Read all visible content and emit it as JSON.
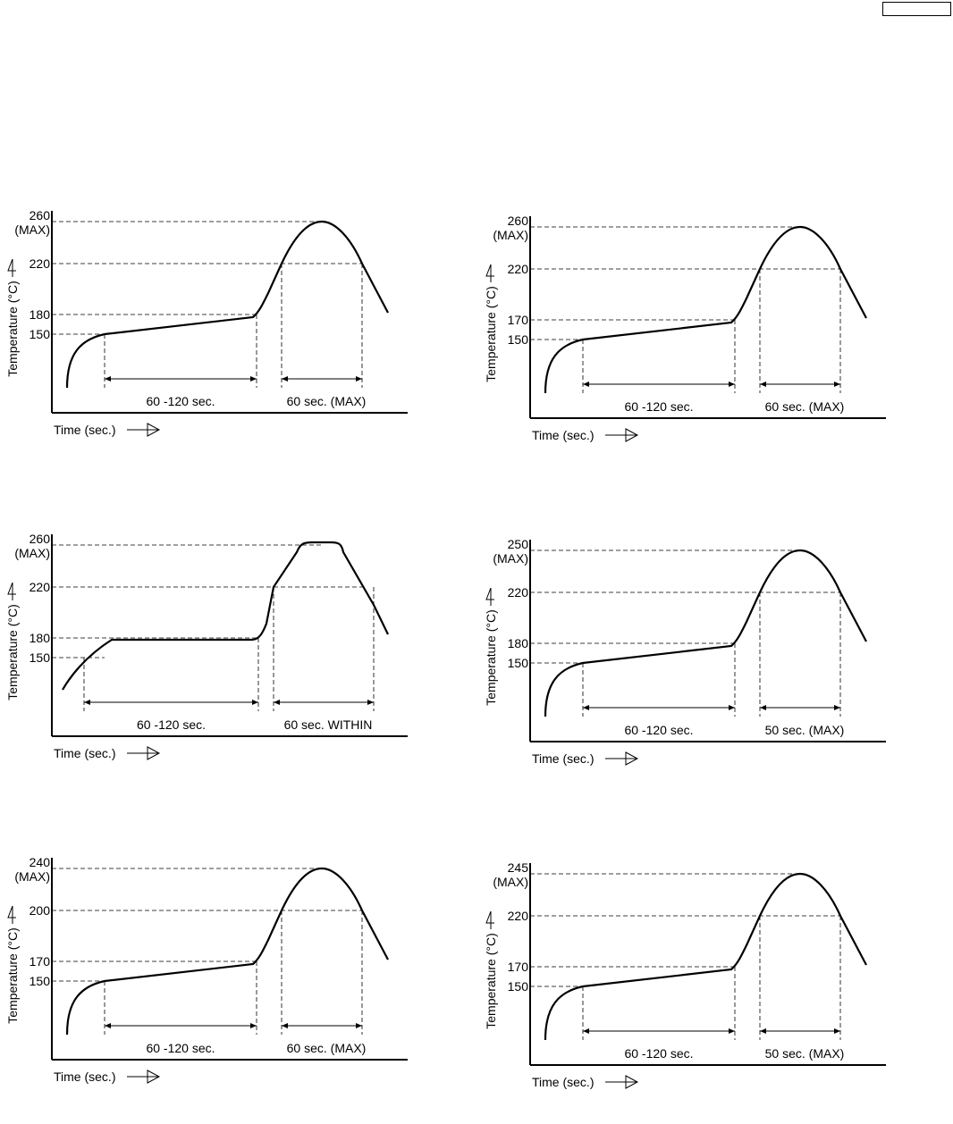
{
  "page": {
    "box_label": ""
  },
  "chart_data": [
    {
      "type": "line",
      "peak_label": "260",
      "peak_sub_label": "(MAX)",
      "y_ticks": [
        "260",
        "220",
        "180",
        "150"
      ],
      "ylabel": "Temperature (°C)",
      "xlabel": "Time (sec.)",
      "preheat_label": "60 -120 sec.",
      "reflow_label": "60 sec. (MAX)",
      "preheat_range_c": [
        150,
        180
      ],
      "reflow_threshold_c": 220,
      "peak_c": 260,
      "profile_shape": "peak"
    },
    {
      "type": "line",
      "peak_label": "260",
      "peak_sub_label": "(MAX)",
      "y_ticks": [
        "260",
        "220",
        "170",
        "150"
      ],
      "ylabel": "Temperature (°C)",
      "xlabel": "Time (sec.)",
      "preheat_label": "60 -120 sec.",
      "reflow_label": "60 sec. (MAX)",
      "preheat_range_c": [
        150,
        170
      ],
      "reflow_threshold_c": 220,
      "peak_c": 260,
      "profile_shape": "peak"
    },
    {
      "type": "line",
      "peak_label": "260",
      "peak_sub_label": "(MAX)",
      "y_ticks": [
        "260",
        "220",
        "180",
        "150"
      ],
      "ylabel": "Temperature (°C)",
      "xlabel": "Time (sec.)",
      "preheat_label": "60 -120 sec.",
      "reflow_label": "60 sec. WITHIN",
      "preheat_range_c": [
        150,
        180
      ],
      "reflow_threshold_c": 220,
      "peak_c": 260,
      "profile_shape": "plateau"
    },
    {
      "type": "line",
      "peak_label": "250",
      "peak_sub_label": "(MAX)",
      "y_ticks": [
        "250",
        "220",
        "180",
        "150"
      ],
      "ylabel": "Temperature (°C)",
      "xlabel": "Time (sec.)",
      "preheat_label": "60 -120 sec.",
      "reflow_label": "50 sec. (MAX)",
      "preheat_range_c": [
        150,
        180
      ],
      "reflow_threshold_c": 220,
      "peak_c": 250,
      "profile_shape": "peak"
    },
    {
      "type": "line",
      "peak_label": "240",
      "peak_sub_label": "(MAX)",
      "y_ticks": [
        "240",
        "200",
        "170",
        "150"
      ],
      "ylabel": "Temperature (°C)",
      "xlabel": "Time (sec.)",
      "preheat_label": "60 -120 sec.",
      "reflow_label": "60 sec. (MAX)",
      "preheat_range_c": [
        150,
        170
      ],
      "reflow_threshold_c": 200,
      "peak_c": 240,
      "profile_shape": "peak"
    },
    {
      "type": "line",
      "peak_label": "245",
      "peak_sub_label": "(MAX)",
      "y_ticks": [
        "245",
        "220",
        "170",
        "150"
      ],
      "ylabel": "Temperature (°C)",
      "xlabel": "Time (sec.)",
      "preheat_label": "60 -120 sec.",
      "reflow_label": "50 sec. (MAX)",
      "preheat_range_c": [
        150,
        170
      ],
      "reflow_threshold_c": 220,
      "peak_c": 245,
      "profile_shape": "peak"
    }
  ]
}
